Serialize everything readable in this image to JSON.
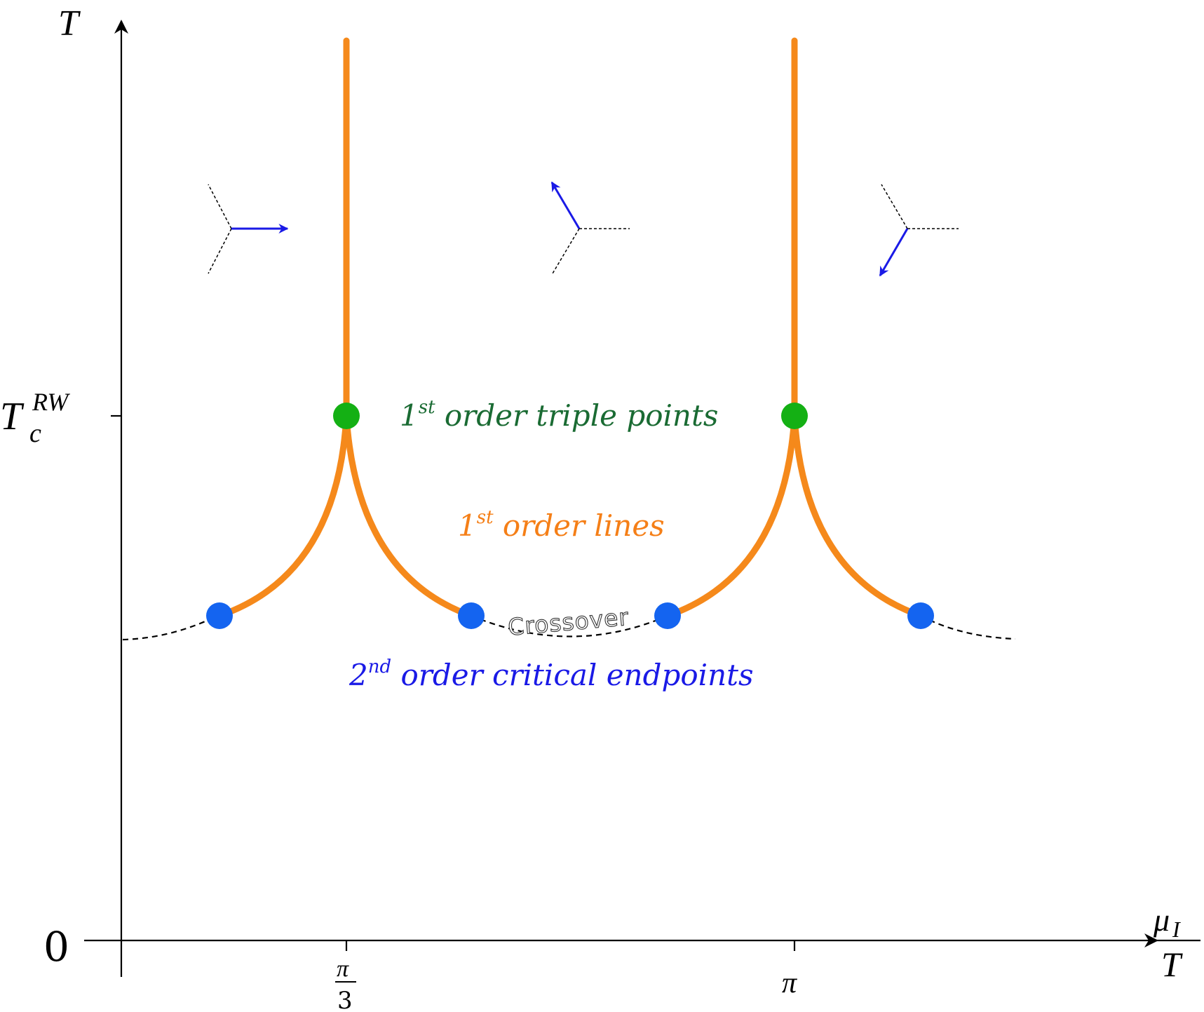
{
  "axes": {
    "y_label": "T",
    "x_label_num": "μ",
    "x_label_sub": "I",
    "x_label_den": "T",
    "y_origin_label": "0",
    "y_tick_label_base": "T",
    "y_tick_label_sub": "c",
    "y_tick_label_sup": "RW",
    "x_tick_1_num": "π",
    "x_tick_1_den": "3",
    "x_tick_2": "π"
  },
  "labels": {
    "triple_points": {
      "base": "1",
      "sup": "st",
      "text": " order triple points",
      "color": "#1a6b33"
    },
    "first_order_lines": {
      "base": "1",
      "sup": "st",
      "text": " order lines",
      "color": "#f57f17"
    },
    "endpoints": {
      "base": "2",
      "sup": "nd",
      "text": " order critical endpoints",
      "color": "#1a1ae6"
    },
    "crossover": "Crossover"
  },
  "colors": {
    "first_order_line": "#f5891b",
    "triple_point": "#14b014",
    "endpoint": "#1464f0",
    "polyakov_arrow": "#1a1ae6",
    "axis": "#000000"
  },
  "icons": [
    "polyakov-loop-phase-right-icon",
    "polyakov-loop-phase-upleft-icon",
    "polyakov-loop-phase-downleft-icon"
  ]
}
